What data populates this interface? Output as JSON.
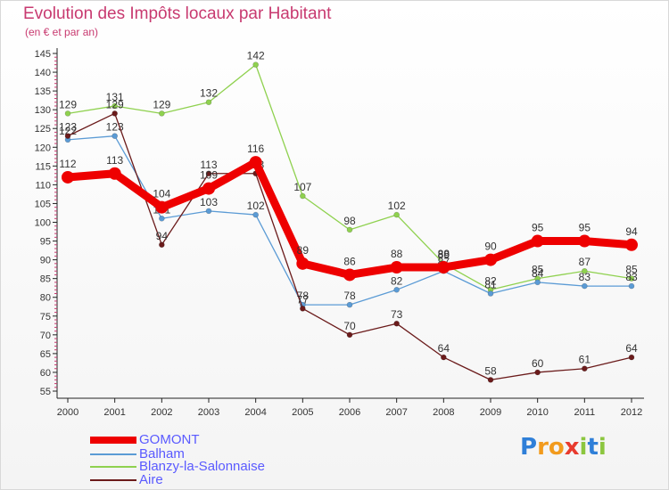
{
  "chart_data": {
    "type": "line",
    "title": "Evolution des Impôts locaux par Habitant",
    "subtitle": "(en € et par an)",
    "xlabel": "",
    "ylabel": "",
    "x": [
      "2000",
      "2001",
      "2002",
      "2003",
      "2004",
      "2005",
      "2006",
      "2007",
      "2008",
      "2009",
      "2010",
      "2011",
      "2012"
    ],
    "ylim": [
      55,
      145
    ],
    "yticks": [
      55,
      60,
      65,
      70,
      75,
      80,
      85,
      90,
      95,
      100,
      105,
      110,
      115,
      120,
      125,
      130,
      135,
      140,
      145
    ],
    "grid": false,
    "legend_position": "bottom-left",
    "series": [
      {
        "name": "GOMONT",
        "color": "#ee0000",
        "values": [
          112,
          113,
          104,
          109,
          116,
          89,
          86,
          88,
          88,
          90,
          95,
          95,
          94
        ]
      },
      {
        "name": "Balham",
        "color": "#5b9bd5",
        "values": [
          122,
          123,
          101,
          103,
          102,
          78,
          78,
          82,
          87,
          81,
          84,
          83,
          83
        ]
      },
      {
        "name": "Blanzy-la-Salonnaise",
        "color": "#8fd14f",
        "values": [
          129,
          131,
          129,
          132,
          142,
          107,
          98,
          102,
          89,
          82,
          85,
          87,
          85
        ]
      },
      {
        "name": "Aire",
        "color": "#6b1b1b",
        "values": [
          123,
          129,
          94,
          113,
          113,
          77,
          70,
          73,
          64,
          58,
          60,
          61,
          64
        ]
      }
    ]
  },
  "legend": {
    "items": [
      "GOMONT",
      "Balham",
      "Blanzy-la-Salonnaise",
      "Aire"
    ]
  },
  "logo": {
    "letters": [
      "P",
      "r",
      "o",
      "x",
      "i",
      "t",
      "i"
    ],
    "colors": [
      "#2f7fd8",
      "#f29b1d",
      "#f29b1d",
      "#e83b2e",
      "#8cc63f",
      "#2f7fd8",
      "#8cc63f"
    ]
  }
}
